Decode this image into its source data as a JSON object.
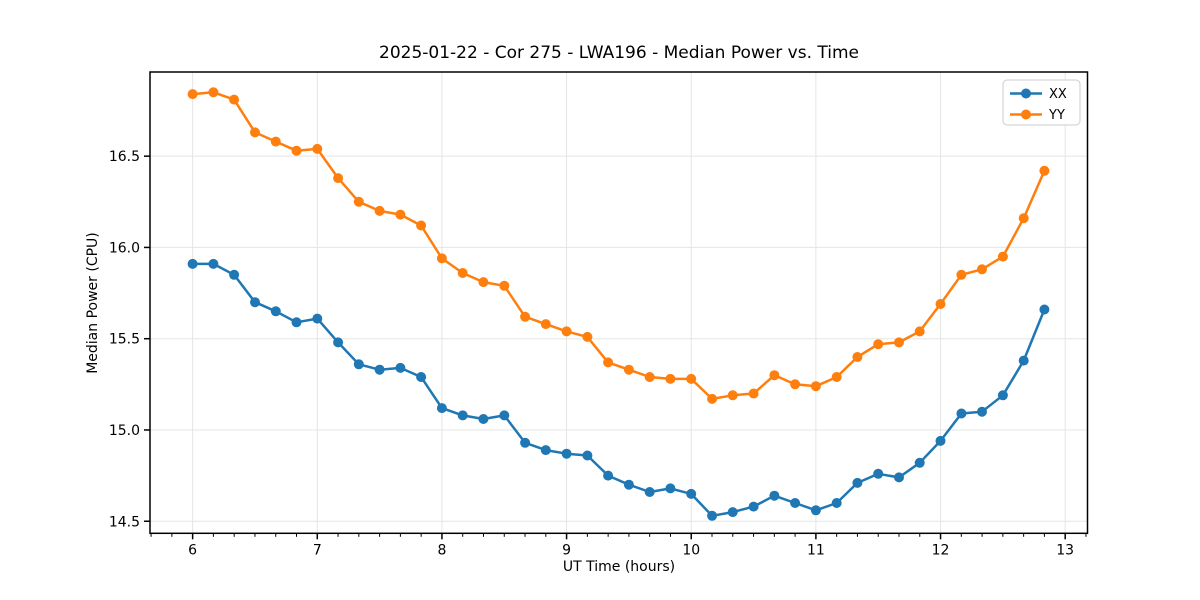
{
  "chart_data": {
    "type": "line",
    "title": "2025-01-22 - Cor 275 - LWA196 - Median Power vs. Time",
    "xlabel": "UT Time (hours)",
    "ylabel": "Median Power (CPU)",
    "xlim": [
      5.658,
      13.179
    ],
    "ylim": [
      14.434,
      16.961
    ],
    "x_ticks": [
      6,
      7,
      8,
      9,
      10,
      11,
      12,
      13
    ],
    "y_ticks": [
      14.5,
      15.0,
      15.5,
      16.0,
      16.5
    ],
    "x_minor_tick_step_hours": 0.16667,
    "grid": true,
    "legend_position": "upper right",
    "background_color": "#ffffff",
    "grid_color": "#e5e5e5",
    "spine_color": "#000000",
    "x": [
      6.0,
      6.167,
      6.333,
      6.5,
      6.667,
      6.833,
      7.0,
      7.167,
      7.333,
      7.5,
      7.667,
      7.833,
      8.0,
      8.167,
      8.333,
      8.5,
      8.667,
      8.833,
      9.0,
      9.167,
      9.333,
      9.5,
      9.667,
      9.833,
      10.0,
      10.167,
      10.333,
      10.5,
      10.667,
      10.833,
      11.0,
      11.167,
      11.333,
      11.5,
      11.667,
      11.833,
      12.0,
      12.167,
      12.333,
      12.5,
      12.667,
      12.833
    ],
    "series": [
      {
        "name": "XX",
        "color": "#1f77b4",
        "marker": "circle",
        "values": [
          15.91,
          15.91,
          15.85,
          15.7,
          15.65,
          15.59,
          15.61,
          15.48,
          15.36,
          15.33,
          15.34,
          15.29,
          15.12,
          15.08,
          15.06,
          15.08,
          14.93,
          14.89,
          14.87,
          14.86,
          14.75,
          14.7,
          14.66,
          14.68,
          14.65,
          14.53,
          14.55,
          14.58,
          14.64,
          14.6,
          14.56,
          14.6,
          14.71,
          14.76,
          14.74,
          14.82,
          14.94,
          15.09,
          15.1,
          15.19,
          15.38,
          15.66
        ]
      },
      {
        "name": "YY",
        "color": "#ff7f0e",
        "marker": "circle",
        "values": [
          16.84,
          16.85,
          16.81,
          16.63,
          16.58,
          16.53,
          16.54,
          16.38,
          16.25,
          16.2,
          16.18,
          16.12,
          15.94,
          15.86,
          15.81,
          15.79,
          15.62,
          15.58,
          15.54,
          15.51,
          15.37,
          15.33,
          15.29,
          15.28,
          15.28,
          15.17,
          15.19,
          15.2,
          15.3,
          15.25,
          15.24,
          15.29,
          15.4,
          15.47,
          15.48,
          15.54,
          15.69,
          15.85,
          15.88,
          15.95,
          16.16,
          16.42
        ]
      }
    ]
  }
}
